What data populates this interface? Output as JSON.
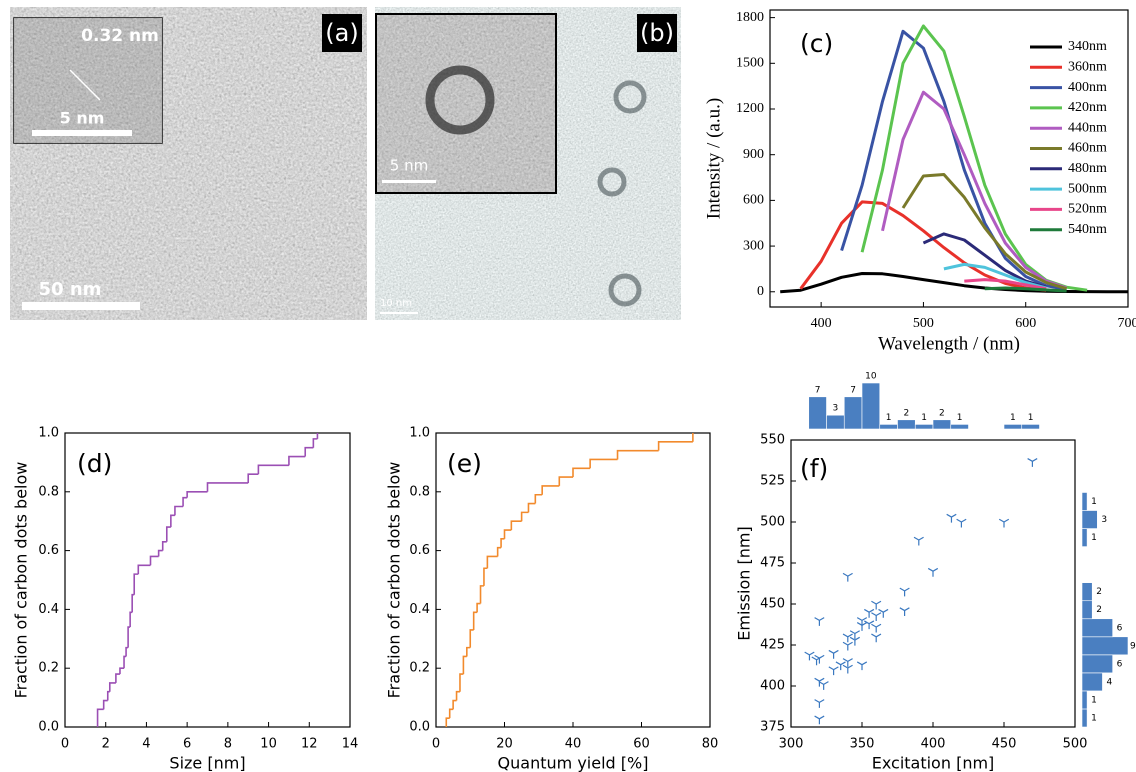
{
  "images": [
    {
      "label": "(a)",
      "inset_label": "0.32 nm",
      "inset_scale": "5 nm",
      "scale": "50 nm"
    },
    {
      "label": "(b)",
      "inset_scale": "5 nm",
      "scale": "10 nm"
    }
  ],
  "chart_data": [
    {
      "type": "line",
      "panel_label": "(c)",
      "xlabel": "Wavelength / (nm)",
      "ylabel": "Intensity / (a.u.)",
      "xlim": [
        350,
        700
      ],
      "xticks": [
        400,
        500,
        600,
        700
      ],
      "ylim": [
        -100,
        1850
      ],
      "yticks": [
        0,
        300,
        600,
        900,
        1200,
        1500,
        1800
      ],
      "legend": "upper right",
      "x": [
        360,
        380,
        400,
        420,
        440,
        460,
        480,
        500,
        520,
        540,
        560,
        580,
        600,
        620,
        640,
        660,
        680,
        700
      ],
      "series": [
        {
          "name": "340nm",
          "color": "#000000",
          "values": [
            0,
            10,
            50,
            95,
            120,
            118,
            100,
            80,
            60,
            40,
            25,
            15,
            8,
            4,
            2,
            1,
            0,
            0
          ]
        },
        {
          "name": "360nm",
          "color": "#e8312a",
          "values": [
            null,
            20,
            200,
            450,
            590,
            580,
            500,
            400,
            290,
            190,
            110,
            55,
            25,
            10,
            null,
            null,
            null,
            null
          ]
        },
        {
          "name": "400nm",
          "color": "#3953a4",
          "values": [
            null,
            null,
            null,
            270,
            700,
            1250,
            1710,
            1600,
            1250,
            800,
            450,
            220,
            100,
            40,
            15,
            null,
            null,
            null
          ]
        },
        {
          "name": "420nm",
          "color": "#5bc44f",
          "values": [
            null,
            null,
            null,
            null,
            260,
            800,
            1500,
            1745,
            1580,
            1150,
            700,
            380,
            180,
            75,
            30,
            10,
            null,
            null
          ]
        },
        {
          "name": "440nm",
          "color": "#b05cc1",
          "values": [
            null,
            null,
            null,
            null,
            null,
            400,
            1000,
            1310,
            1200,
            900,
            580,
            320,
            160,
            70,
            25,
            null,
            null,
            null
          ]
        },
        {
          "name": "460nm",
          "color": "#7a7a2a",
          "values": [
            null,
            null,
            null,
            null,
            null,
            null,
            550,
            760,
            770,
            620,
            420,
            250,
            130,
            60,
            20,
            null,
            null,
            null
          ]
        },
        {
          "name": "480nm",
          "color": "#2b2a78",
          "values": [
            null,
            null,
            null,
            null,
            null,
            null,
            null,
            320,
            380,
            340,
            240,
            140,
            70,
            30,
            null,
            null,
            null,
            null
          ]
        },
        {
          "name": "500nm",
          "color": "#4fc3dc",
          "values": [
            null,
            null,
            null,
            null,
            null,
            null,
            null,
            null,
            150,
            180,
            160,
            110,
            60,
            25,
            null,
            null,
            null,
            null
          ]
        },
        {
          "name": "520nm",
          "color": "#e8468a",
          "values": [
            null,
            null,
            null,
            null,
            null,
            null,
            null,
            null,
            null,
            70,
            80,
            70,
            45,
            20,
            null,
            null,
            null,
            null
          ]
        },
        {
          "name": "540nm",
          "color": "#1f7a3a",
          "values": [
            null,
            null,
            null,
            null,
            null,
            null,
            null,
            null,
            null,
            null,
            20,
            25,
            20,
            12,
            5,
            null,
            null,
            null
          ]
        }
      ]
    },
    {
      "type": "step",
      "panel_label": "(d)",
      "xlabel": "Size [nm]",
      "ylabel": "Fraction of carbon dots below",
      "color": "#9b4fb4",
      "xlim": [
        0,
        14
      ],
      "xticks": [
        0,
        2,
        4,
        6,
        8,
        10,
        12,
        14
      ],
      "ylim": [
        0,
        1
      ],
      "yticks": [
        {
          "value": 0,
          "label": "0.0"
        },
        0.2,
        0.4,
        0.6,
        0.8,
        {
          "value": 1,
          "label": "1.0"
        }
      ],
      "x": [
        1.6,
        1.9,
        2.1,
        2.2,
        2.5,
        2.7,
        2.9,
        3.0,
        3.1,
        3.2,
        3.3,
        3.4,
        3.6,
        4.2,
        4.6,
        4.8,
        5.0,
        5.2,
        5.4,
        5.8,
        6.0,
        7.0,
        9.0,
        9.5,
        11.0,
        11.8,
        12.2,
        12.4
      ],
      "values": [
        0.06,
        0.09,
        0.12,
        0.15,
        0.18,
        0.2,
        0.24,
        0.27,
        0.34,
        0.39,
        0.45,
        0.52,
        0.55,
        0.58,
        0.6,
        0.63,
        0.68,
        0.72,
        0.75,
        0.78,
        0.8,
        0.83,
        0.86,
        0.89,
        0.92,
        0.95,
        0.98,
        1.0
      ]
    },
    {
      "type": "step",
      "panel_label": "(e)",
      "xlabel": "Quantum yield [%]",
      "ylabel": "Fraction of carbon dots below",
      "color": "#f28a2c",
      "xlim": [
        0,
        80
      ],
      "xticks": [
        0,
        20,
        40,
        60,
        80
      ],
      "ylim": [
        0,
        1
      ],
      "yticks": [
        {
          "value": 0,
          "label": "0.0"
        },
        0.2,
        0.4,
        0.6,
        0.8,
        {
          "value": 1,
          "label": "1.0"
        }
      ],
      "x": [
        3,
        4,
        5,
        6,
        7,
        8,
        9,
        10,
        11,
        12,
        13,
        14,
        15,
        18,
        19,
        20,
        22,
        25,
        27,
        29,
        31,
        36,
        40,
        45,
        53,
        65,
        75
      ],
      "values": [
        0.03,
        0.06,
        0.09,
        0.12,
        0.18,
        0.24,
        0.27,
        0.33,
        0.39,
        0.42,
        0.48,
        0.54,
        0.58,
        0.61,
        0.64,
        0.67,
        0.7,
        0.73,
        0.76,
        0.79,
        0.82,
        0.85,
        0.88,
        0.91,
        0.94,
        0.97,
        1.0
      ]
    },
    {
      "type": "scatter",
      "panel_label": "(f)",
      "xlabel": "Excitation [nm]",
      "ylabel": "Emission [nm]",
      "color": "#3a78c0",
      "xlim": [
        300,
        500
      ],
      "xticks": [
        300,
        350,
        400,
        450,
        500
      ],
      "ylim": [
        375,
        550
      ],
      "yticks": [
        375,
        400,
        425,
        450,
        475,
        500,
        525,
        550
      ],
      "x": [
        320,
        320,
        318,
        313,
        320,
        323,
        320,
        320,
        330,
        330,
        335,
        340,
        340,
        340,
        340,
        340,
        345,
        345,
        350,
        350,
        350,
        355,
        355,
        360,
        360,
        360,
        360,
        365,
        380,
        380,
        390,
        400,
        413,
        420,
        450,
        470
      ],
      "values": [
        440,
        417,
        416,
        419,
        403,
        401,
        390,
        380,
        420,
        410,
        413,
        467,
        430,
        425,
        415,
        411,
        432,
        428,
        440,
        437,
        413,
        438,
        445,
        450,
        443,
        436,
        430,
        445,
        458,
        446,
        489,
        470,
        503,
        500,
        500,
        537
      ],
      "top_histogram": {
        "bins": [
          312.5,
          325,
          337.5,
          350,
          362.5,
          375,
          387.5,
          400,
          412.5,
          425,
          437.5,
          450,
          462.5,
          475
        ],
        "values": [
          7,
          3,
          7,
          10,
          1,
          2,
          1,
          2,
          1,
          0,
          0,
          1,
          1
        ]
      },
      "right_histogram": {
        "bins": [
          375,
          386,
          397,
          408,
          419,
          430,
          441,
          452,
          463,
          474,
          485,
          496,
          507,
          518
        ],
        "values": [
          1,
          1,
          4,
          6,
          9,
          6,
          2,
          2,
          0,
          0,
          1,
          3,
          1
        ]
      }
    }
  ]
}
